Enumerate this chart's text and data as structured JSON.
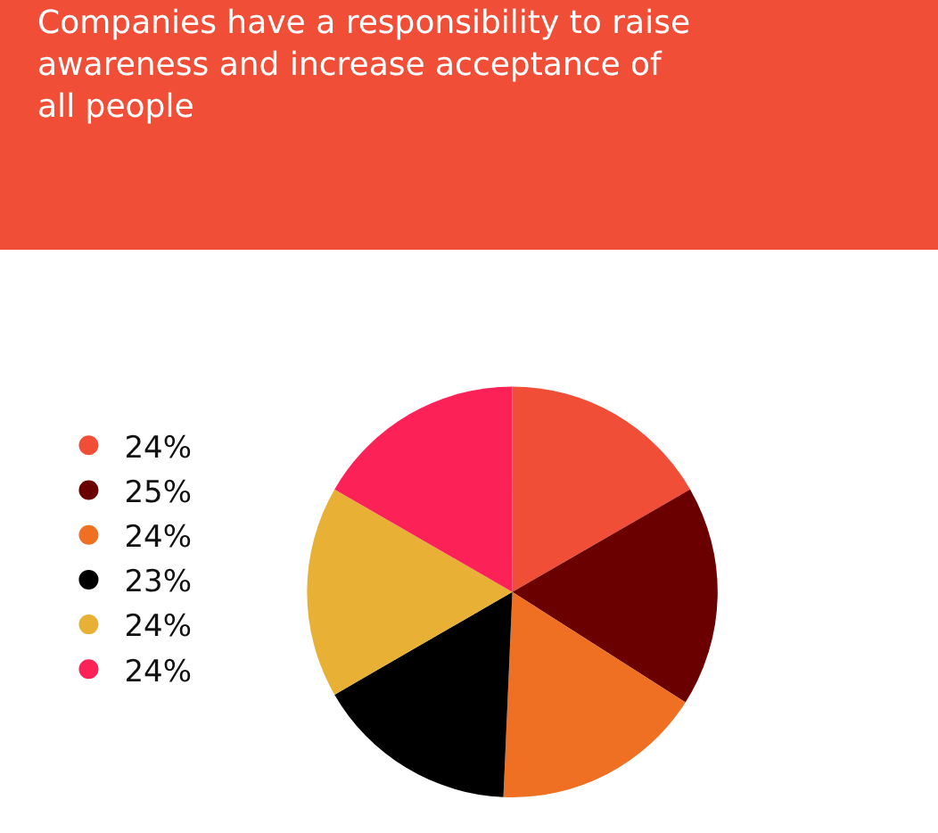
{
  "chart_data": {
    "type": "pie",
    "title": "Companies have a responsibility to raise\nawareness and increase acceptance of\nall people",
    "categories": [
      "24%",
      "25%",
      "24%",
      "23%",
      "24%",
      "24%"
    ],
    "values": [
      24,
      25,
      24,
      23,
      24,
      24
    ],
    "colors": [
      "#f04e37",
      "#6b0000",
      "#ef7022",
      "#000000",
      "#e8b034",
      "#fc2157"
    ],
    "legend": "top left"
  }
}
